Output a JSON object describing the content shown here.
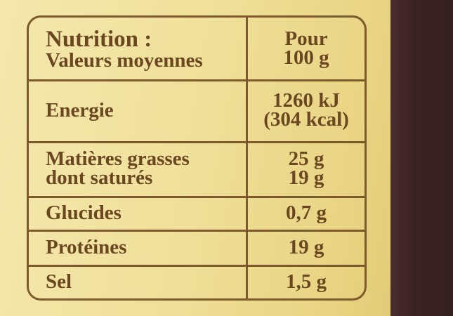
{
  "table": {
    "header": {
      "label": [
        "Nutrition :",
        "Valeurs moyennes"
      ],
      "value": [
        "Pour",
        "100 g"
      ]
    },
    "rows": [
      {
        "label": [
          "Energie"
        ],
        "value": [
          "1260 kJ",
          "(304 kcal)"
        ]
      },
      {
        "label": [
          "Matières grasses",
          "dont saturés"
        ],
        "value": [
          "25 g",
          "19 g"
        ]
      },
      {
        "label": [
          "Glucides"
        ],
        "value": [
          "0,7 g"
        ]
      },
      {
        "label": [
          "Protéines"
        ],
        "value": [
          "19 g"
        ]
      },
      {
        "label": [
          "Sel"
        ],
        "value": [
          "1,5 g"
        ]
      }
    ]
  }
}
